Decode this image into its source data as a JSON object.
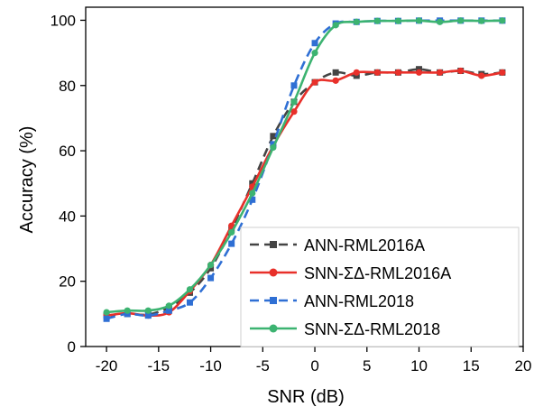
{
  "chart_data": {
    "type": "line",
    "title": "",
    "xlabel": "SNR (dB)",
    "ylabel": "Accuracy (%)",
    "xlim": [
      -22,
      20
    ],
    "ylim": [
      0,
      104
    ],
    "xticks": [
      -20,
      -15,
      -10,
      -5,
      0,
      5,
      10,
      15,
      20
    ],
    "yticks": [
      0,
      20,
      40,
      60,
      80,
      100
    ],
    "legend_position": "bottom-right",
    "x": [
      -20,
      -18,
      -16,
      -14,
      -12,
      -10,
      -8,
      -6,
      -4,
      -2,
      0,
      2,
      4,
      6,
      8,
      10,
      12,
      14,
      16,
      18
    ],
    "series": [
      {
        "name": "ANN-RML2016A",
        "color": "#444444",
        "style": "dashed",
        "marker": "square",
        "values": [
          9.5,
          10.0,
          9.8,
          12.0,
          16.5,
          24.0,
          36.0,
          50.0,
          64.5,
          75.0,
          81.0,
          84.0,
          83.0,
          84.0,
          84.0,
          85.0,
          84.0,
          84.5,
          83.5,
          84.0
        ]
      },
      {
        "name": "SNN-ΣΔ-RML2016A",
        "color": "#e8302a",
        "style": "solid",
        "marker": "circle",
        "values": [
          9.5,
          10.2,
          9.5,
          10.5,
          17.0,
          25.0,
          37.0,
          49.0,
          61.5,
          72.0,
          81.0,
          81.5,
          84.0,
          84.0,
          84.0,
          84.0,
          84.0,
          84.5,
          83.0,
          84.0
        ]
      },
      {
        "name": "ANN-RML2018",
        "color": "#2f6fd4",
        "style": "dashed",
        "marker": "square",
        "values": [
          8.5,
          10.0,
          9.5,
          11.0,
          13.5,
          21.0,
          31.5,
          45.0,
          62.0,
          80.0,
          93.0,
          99.0,
          99.5,
          99.8,
          99.8,
          99.9,
          99.9,
          99.9,
          99.9,
          99.9
        ]
      },
      {
        "name": "SNN-ΣΔ-RML2018",
        "color": "#3cb371",
        "style": "solid",
        "marker": "circle",
        "values": [
          10.5,
          11.0,
          11.0,
          12.5,
          17.5,
          25.0,
          35.0,
          47.0,
          61.0,
          75.0,
          90.0,
          98.5,
          99.5,
          99.8,
          99.8,
          99.9,
          99.5,
          99.9,
          99.8,
          99.9
        ]
      }
    ]
  }
}
